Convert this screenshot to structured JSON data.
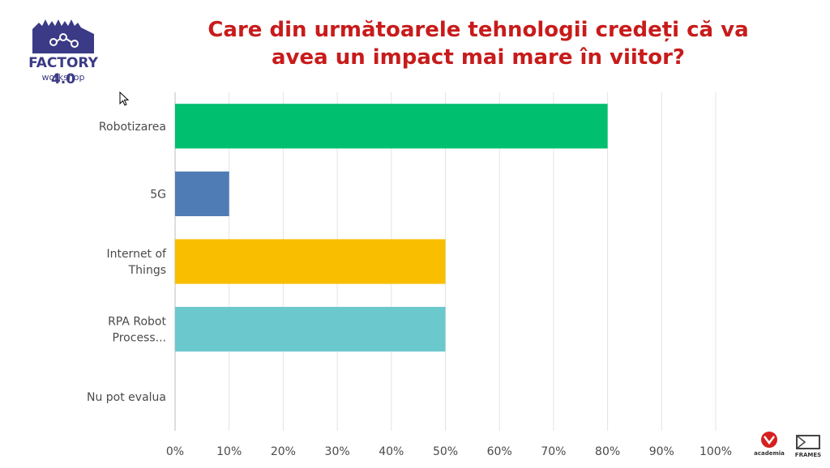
{
  "logo": {
    "title": "FACTORY 4.0",
    "subtitle": "workshop",
    "icon": "factory-icon",
    "color": "#3b3a86"
  },
  "title": {
    "line1": "Care din următoarele tehnologii credeți că va",
    "line2": "avea un impact mai mare în viitor?",
    "color": "#c81b1b"
  },
  "chart_data": {
    "type": "bar",
    "orientation": "horizontal",
    "categories": [
      [
        "Robotizarea"
      ],
      [
        "5G"
      ],
      [
        "Internet of",
        "Things"
      ],
      [
        "RPA Robot",
        "Process..."
      ],
      [
        "Nu pot evalua"
      ]
    ],
    "values": [
      80,
      10,
      50,
      50,
      0
    ],
    "colors": [
      "#00bf6f",
      "#507cb6",
      "#f9be00",
      "#6bc8cd",
      "#cccccc"
    ],
    "xlim": [
      0,
      100
    ],
    "xticks": [
      "0%",
      "10%",
      "20%",
      "30%",
      "40%",
      "50%",
      "60%",
      "70%",
      "80%",
      "90%",
      "100%"
    ],
    "grid": true,
    "legend": "none"
  },
  "footer": {
    "brand_a": "academia",
    "brand_b": "FRAMES",
    "brand_a_icon": "academia-logo-icon",
    "brand_b_icon": "frames-logo-icon"
  }
}
